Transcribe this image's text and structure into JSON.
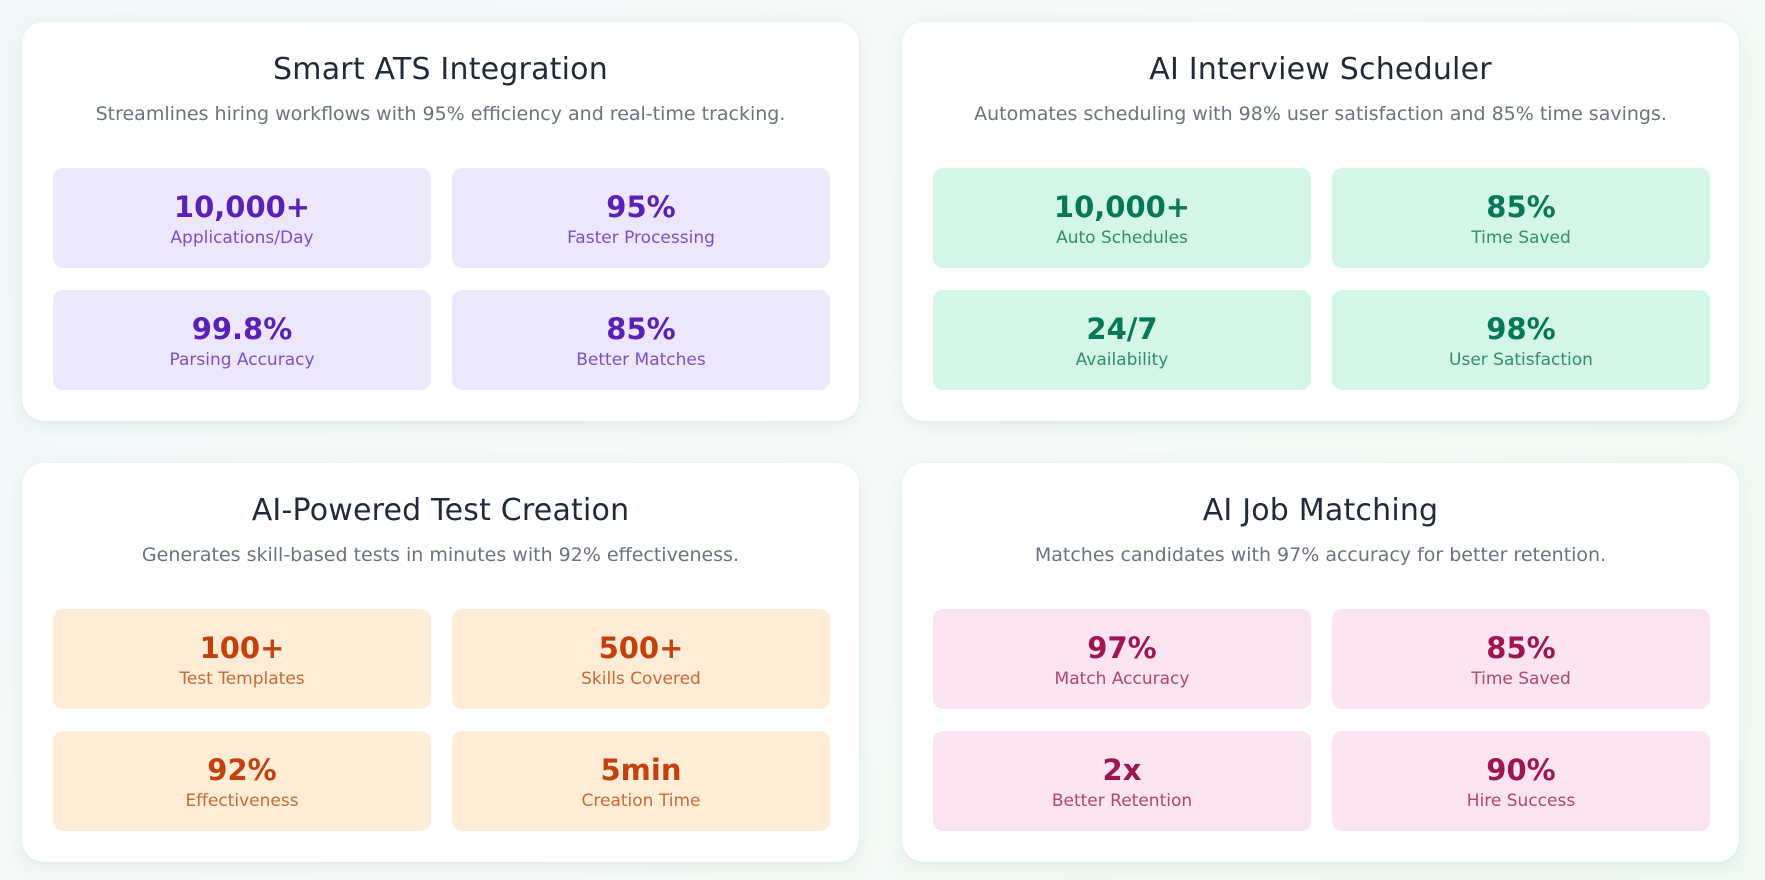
{
  "cards": [
    {
      "title": "Smart ATS Integration",
      "description": "Streamlines hiring workflows with 95% efficiency and real-time tracking.",
      "theme": "purple",
      "stats": [
        {
          "value": "10,000+",
          "label": "Applications/Day"
        },
        {
          "value": "95%",
          "label": "Faster Processing"
        },
        {
          "value": "99.8%",
          "label": "Parsing Accuracy"
        },
        {
          "value": "85%",
          "label": "Better Matches"
        }
      ]
    },
    {
      "title": "AI Interview Scheduler",
      "description": "Automates scheduling with 98% user satisfaction and 85% time savings.",
      "theme": "green",
      "stats": [
        {
          "value": "10,000+",
          "label": "Auto Schedules"
        },
        {
          "value": "85%",
          "label": "Time Saved"
        },
        {
          "value": "24/7",
          "label": "Availability"
        },
        {
          "value": "98%",
          "label": "User Satisfaction"
        }
      ]
    },
    {
      "title": "AI-Powered Test Creation",
      "description": "Generates skill-based tests in minutes with 92% effectiveness.",
      "theme": "orange",
      "stats": [
        {
          "value": "100+",
          "label": "Test Templates"
        },
        {
          "value": "500+",
          "label": "Skills Covered"
        },
        {
          "value": "92%",
          "label": "Effectiveness"
        },
        {
          "value": "5min",
          "label": "Creation Time"
        }
      ]
    },
    {
      "title": "AI Job Matching",
      "description": "Matches candidates with 97% accuracy for better retention.",
      "theme": "pink",
      "stats": [
        {
          "value": "97%",
          "label": "Match Accuracy"
        },
        {
          "value": "85%",
          "label": "Time Saved"
        },
        {
          "value": "2x",
          "label": "Better Retention"
        },
        {
          "value": "90%",
          "label": "Hire Success"
        }
      ]
    }
  ],
  "colors": {
    "purple_bg": "#ede7fd",
    "purple_text": "#5b21b6",
    "green_bg": "#d3f6e6",
    "green_text": "#047857",
    "orange_bg": "#feecd6",
    "orange_text": "#c2410c",
    "pink_bg": "#fbe4f1",
    "pink_text": "#9d174d"
  }
}
